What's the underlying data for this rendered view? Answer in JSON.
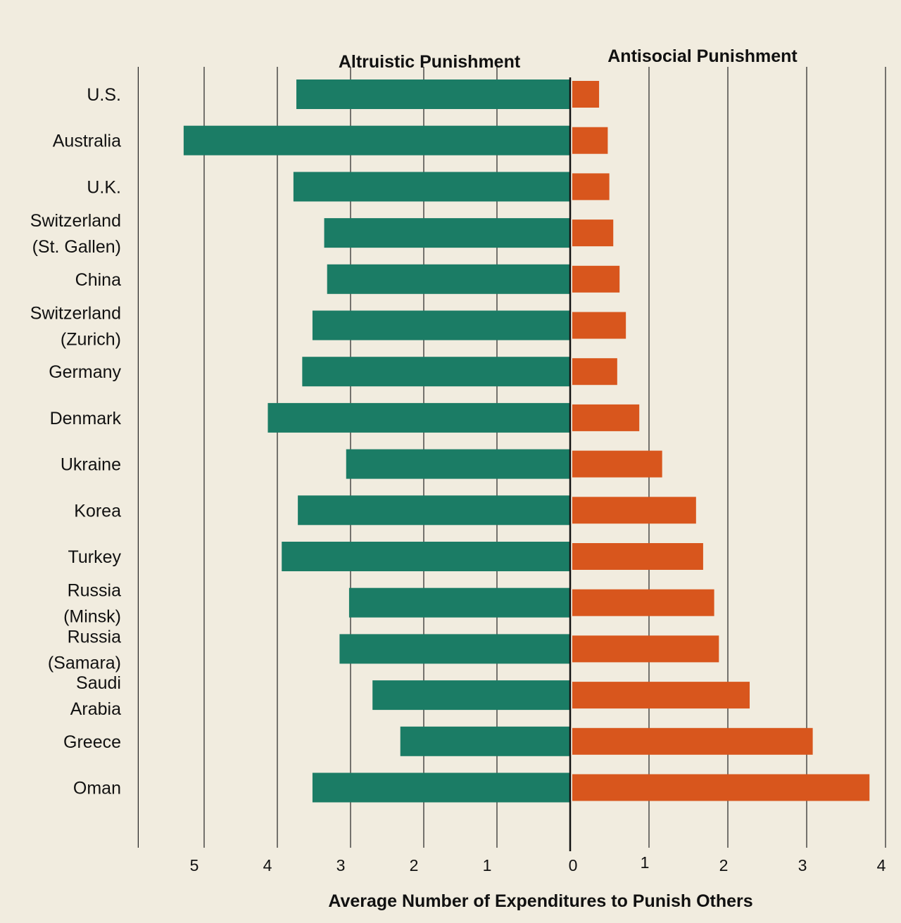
{
  "chart_data": {
    "type": "bar",
    "orientation": "horizontal-diverging",
    "title_left": "Altruistic Punishment",
    "title_right": "Antisocial Punishment",
    "xlabel": "Average Number of Expenditures to Punish Others",
    "categories": [
      [
        "U.S."
      ],
      [
        "Australia"
      ],
      [
        "U.K."
      ],
      [
        "Switzerland",
        "(St. Gallen)"
      ],
      [
        "China"
      ],
      [
        "Switzerland",
        "(Zurich)"
      ],
      [
        "Germany"
      ],
      [
        "Denmark"
      ],
      [
        "Ukraine"
      ],
      [
        "Korea"
      ],
      [
        "Turkey"
      ],
      [
        "Russia",
        "(Minsk)"
      ],
      [
        "Russia",
        "(Samara)"
      ],
      [
        "Saudi",
        "Arabia"
      ],
      [
        "Greece"
      ],
      [
        "Oman"
      ]
    ],
    "series": [
      {
        "name": "Altruistic Punishment",
        "color": "#1b7c65",
        "values": [
          3.74,
          5.28,
          3.78,
          3.36,
          3.32,
          3.52,
          3.66,
          4.13,
          3.06,
          3.72,
          3.94,
          3.02,
          3.15,
          2.7,
          2.32,
          3.52
        ]
      },
      {
        "name": "Antisocial Punishment",
        "color": "#d8561d",
        "values": [
          0.34,
          0.45,
          0.47,
          0.52,
          0.6,
          0.68,
          0.57,
          0.85,
          1.14,
          1.57,
          1.66,
          1.8,
          1.86,
          2.25,
          3.05,
          3.77
        ]
      }
    ],
    "left_ticks": [
      5,
      4,
      3,
      2,
      1,
      0
    ],
    "right_ticks": [
      1,
      2,
      3,
      4
    ],
    "left_axis_range": [
      0,
      5.9
    ],
    "right_axis_range": [
      0,
      4
    ],
    "grid": true
  }
}
